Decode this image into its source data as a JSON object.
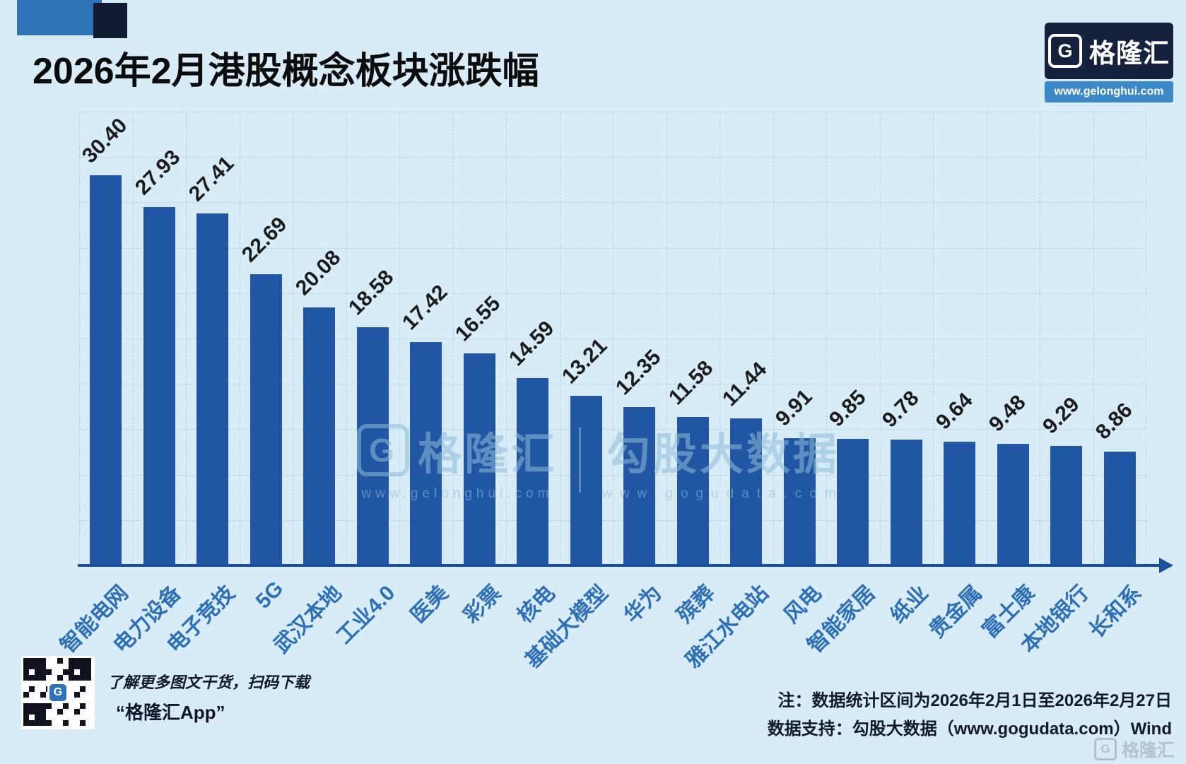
{
  "header": {
    "title": "2026年2月港股概念板块涨跌幅",
    "brand": "格隆汇",
    "brand_g": "G",
    "brand_url": "www.gelonghui.com"
  },
  "chart_data": {
    "type": "bar",
    "title": "2026年2月港股概念板块涨跌幅",
    "categories": [
      "智能电网",
      "电力设备",
      "电子竞技",
      "5G",
      "武汉本地",
      "工业4.0",
      "医美",
      "彩票",
      "核电",
      "基础大模型",
      "华为",
      "殡葬",
      "雅江水电站",
      "风电",
      "智能家居",
      "纸业",
      "贵金属",
      "富士康",
      "本地银行",
      "长和系"
    ],
    "values": [
      30.4,
      27.93,
      27.41,
      22.69,
      20.08,
      18.58,
      17.42,
      16.55,
      14.59,
      13.21,
      12.35,
      11.58,
      11.44,
      9.91,
      9.85,
      9.78,
      9.64,
      9.48,
      9.29,
      8.86
    ],
    "value_labels": [
      "30.40",
      "27.93",
      "27.41",
      "22.69",
      "20.08",
      "18.58",
      "17.42",
      "16.55",
      "14.59",
      "13.21",
      "12.35",
      "11.58",
      "11.44",
      "9.91",
      "9.85",
      "9.78",
      "9.64",
      "9.48",
      "9.29",
      "8.86"
    ],
    "xlabel": "",
    "ylabel": "",
    "ylim": [
      0,
      32
    ],
    "grid": true,
    "legend": false,
    "bar_color": "#2156a4"
  },
  "watermark": {
    "left_g": "G",
    "left_brand": "格隆汇",
    "left_url": "www.gelonghui.com",
    "right_brand": "勾股大数据",
    "right_url": "www.gogudata.com"
  },
  "footer": {
    "qr_caption": "了解更多图文干货，扫码下载",
    "app_label": "“格隆汇App”",
    "note_line1": "注：数据统计区间为2026年2月1日至2026年2月27日",
    "note_line2": "数据支持：勾股大数据（www.gogudata.com）Wind",
    "corner_g": "G",
    "corner_brand": "格隆汇"
  },
  "colors": {
    "background": "#d7ecf6",
    "bar": "#2156a4",
    "axis": "#1d4f9f",
    "category_label": "#2e6fb7",
    "grid_line": "#aed2e6",
    "logo_bg": "#15213d",
    "logo_strip": "#3c87c6"
  }
}
